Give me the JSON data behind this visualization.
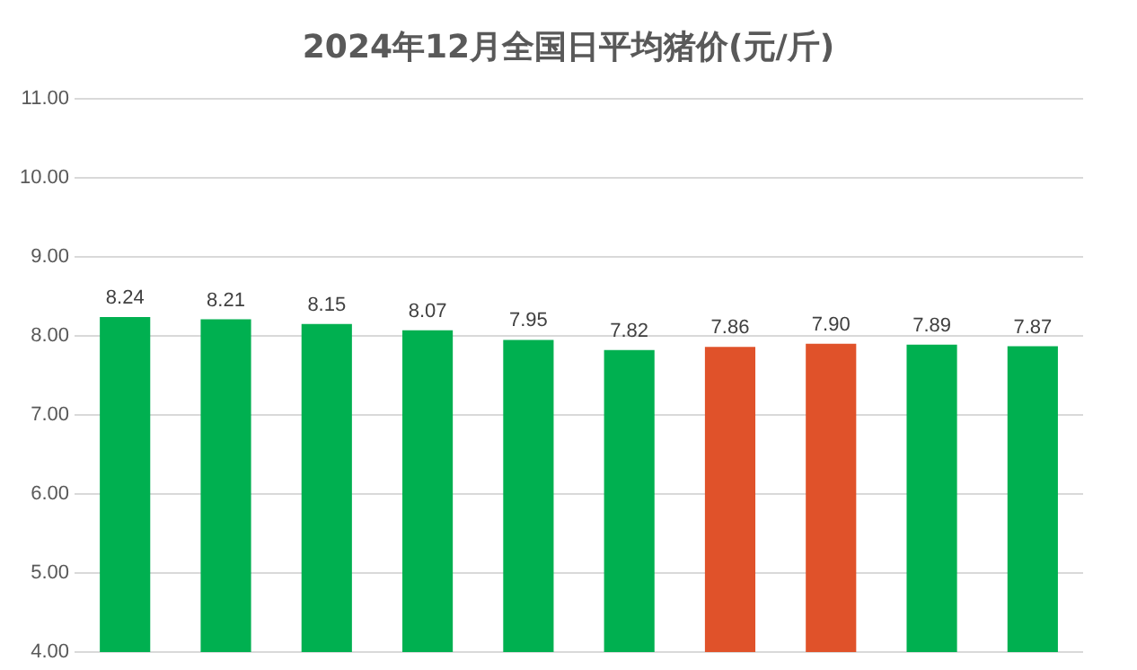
{
  "chart_data": {
    "type": "bar",
    "title": "2024年12月全国日平均猪价(元/斤)",
    "categories": [
      null,
      null,
      null,
      null,
      null,
      null,
      null,
      null,
      null,
      null
    ],
    "values": [
      8.24,
      8.21,
      8.15,
      8.07,
      7.95,
      7.82,
      7.86,
      7.9,
      7.89,
      7.87
    ],
    "colors": [
      "#00b050",
      "#00b050",
      "#00b050",
      "#00b050",
      "#00b050",
      "#00b050",
      "#e0522a",
      "#e0522a",
      "#00b050",
      "#00b050"
    ],
    "value_labels": [
      "8.24",
      "8.21",
      "8.15",
      "8.07",
      "7.95",
      "7.82",
      "7.86",
      "7.90",
      "7.89",
      "7.87"
    ],
    "ylim": [
      4,
      11
    ],
    "yticks": [
      {
        "value": 4,
        "label": "4.00"
      },
      {
        "value": 5,
        "label": "5.00"
      },
      {
        "value": 6,
        "label": "6.00"
      },
      {
        "value": 7,
        "label": "7.00"
      },
      {
        "value": 8,
        "label": "8.00"
      },
      {
        "value": 9,
        "label": "9.00"
      },
      {
        "value": 10,
        "label": "10.00"
      },
      {
        "value": 11,
        "label": "11.00"
      }
    ],
    "grid": "y",
    "legend": false
  }
}
